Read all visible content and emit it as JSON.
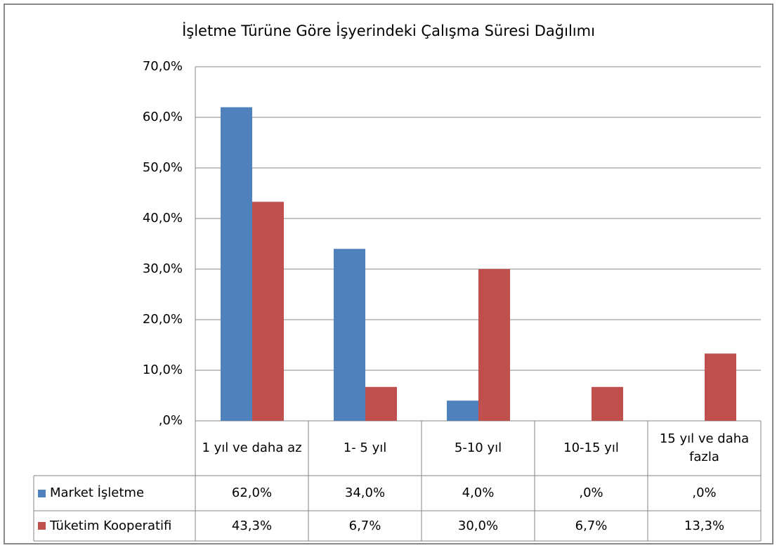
{
  "chart_data": {
    "type": "bar",
    "title": "İşletme Türüne Göre İşyerindeki Çalışma Süresi Dağılımı",
    "categories": [
      "1 yıl ve daha az",
      "1- 5 yıl",
      "5-10 yıl",
      "10-15 yıl",
      "15 yıl ve daha fazla"
    ],
    "series": [
      {
        "name": "Market İşletme",
        "color": "#4f81bd",
        "values": [
          62.0,
          34.0,
          4.0,
          0,
          0
        ],
        "value_labels": [
          "62,0%",
          "34,0%",
          "4,0%",
          ",0%",
          ",0%"
        ]
      },
      {
        "name": "Tüketim Kooperatifi",
        "color": "#c0504d",
        "values": [
          43.3,
          6.7,
          30.0,
          6.7,
          13.3
        ],
        "value_labels": [
          "43,3%",
          "6,7%",
          "30,0%",
          "6,7%",
          "13,3%"
        ]
      }
    ],
    "ylim": [
      0,
      70
    ],
    "yticks": [
      {
        "value": 0,
        "label": ",0%"
      },
      {
        "value": 10,
        "label": "10,0%"
      },
      {
        "value": 20,
        "label": "20,0%"
      },
      {
        "value": 30,
        "label": "30,0%"
      },
      {
        "value": 40,
        "label": "40,0%"
      },
      {
        "value": 50,
        "label": "50,0%"
      },
      {
        "value": 60,
        "label": "60,0%"
      },
      {
        "value": 70,
        "label": "70,0%"
      }
    ],
    "grid": true
  }
}
